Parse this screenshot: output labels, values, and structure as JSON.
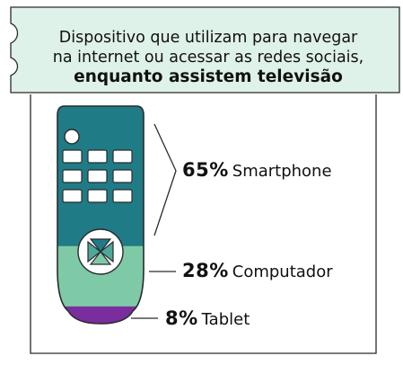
{
  "title": {
    "line1": "Dispositivo que utilizam para navegar",
    "line2": "na internet ou acessar as redes sociais,",
    "line3": "enquanto assistem televisão"
  },
  "colors": {
    "background": "#ffffff",
    "title_box": "#dff2e9",
    "outline": "#2b2b2b",
    "remote_body": "#1f7b86",
    "button_fill": "#ffffff"
  },
  "chart_data": {
    "type": "bar",
    "orientation": "stacked-vertical",
    "categories": [
      "Smartphone",
      "Computador",
      "Tablet"
    ],
    "values": [
      65,
      28,
      8
    ],
    "labels": [
      "65%",
      "28%",
      "8%"
    ],
    "colors": [
      "#1f7b86",
      "#7fcaa6",
      "#7a2e9e"
    ],
    "title": "Dispositivo que utilizam para navegar na internet ou acessar as redes sociais, enquanto assistem televisão"
  },
  "items": [
    {
      "pct": "65%",
      "name": "Smartphone"
    },
    {
      "pct": "28%",
      "name": "Computador"
    },
    {
      "pct": "8%",
      "name": "Tablet"
    }
  ]
}
